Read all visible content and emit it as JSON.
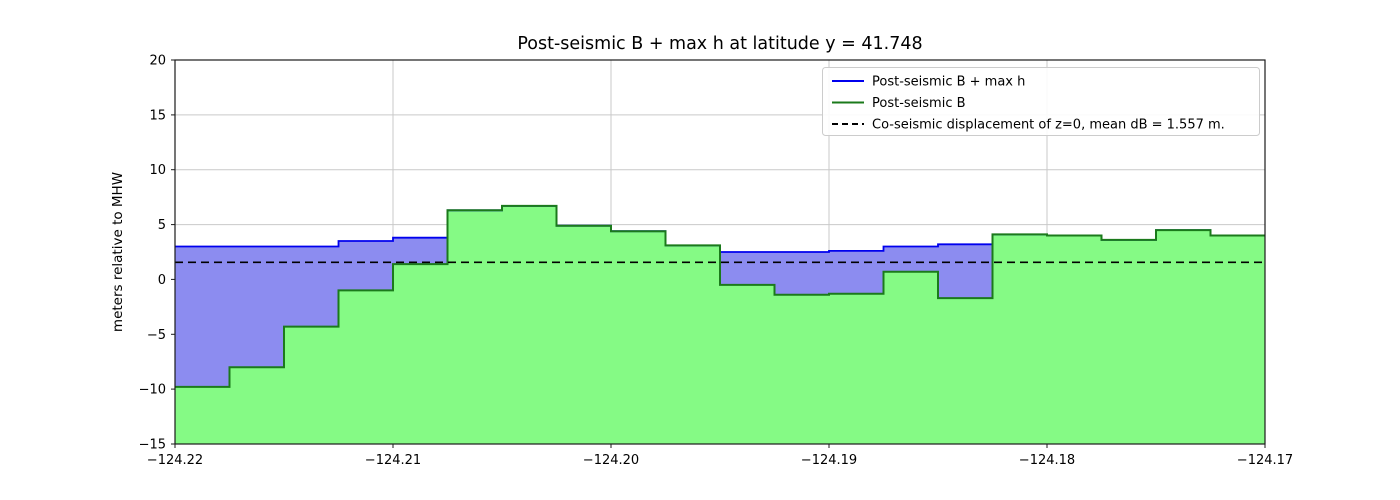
{
  "chart_data": {
    "type": "area",
    "subtype": "step-filled",
    "title": "Post-seismic B + max h at latitude y = 41.748",
    "xlabel": "",
    "ylabel": "meters relative to MHW",
    "xlim": [
      -124.22,
      -124.17
    ],
    "ylim": [
      -15,
      20
    ],
    "grid": true,
    "legend_position": "upper right",
    "xticks": [
      -124.22,
      -124.21,
      -124.2,
      -124.19,
      -124.18,
      -124.17
    ],
    "xtick_labels": [
      "−124.22",
      "−124.21",
      "−124.20",
      "−124.19",
      "−124.18",
      "−124.17"
    ],
    "yticks": [
      20,
      15,
      10,
      5,
      0,
      -5,
      -10,
      -15
    ],
    "ytick_labels": [
      "20",
      "15",
      "10",
      "5",
      "0",
      "−5",
      "−10",
      "−15"
    ],
    "bin_edges": [
      -124.22,
      -124.2175,
      -124.215,
      -124.2125,
      -124.21,
      -124.2075,
      -124.205,
      -124.2025,
      -124.2,
      -124.1975,
      -124.195,
      -124.1925,
      -124.19,
      -124.1875,
      -124.185,
      -124.1825,
      -124.18,
      -124.1775,
      -124.175,
      -124.1725,
      -124.17
    ],
    "series": [
      {
        "name": "Post-seismic B + max h",
        "line_color": "#0000ee",
        "fill_color": "#8c8cf0",
        "values": [
          3.0,
          3.0,
          3.0,
          3.5,
          3.8,
          6.3,
          6.7,
          4.9,
          4.4,
          3.1,
          2.5,
          2.5,
          2.6,
          3.0,
          3.2,
          4.1,
          4.0,
          3.6,
          4.5,
          4.0
        ]
      },
      {
        "name": "Post-seismic B",
        "line_color": "#1b7a1b",
        "fill_color": "#85fa85",
        "values": [
          -9.8,
          -8.0,
          -4.3,
          -1.0,
          1.4,
          6.3,
          6.7,
          4.9,
          4.4,
          3.1,
          -0.5,
          -1.4,
          -1.3,
          0.7,
          -1.7,
          4.1,
          4.0,
          3.6,
          4.5,
          4.0
        ]
      }
    ],
    "reference_line": {
      "label": "Co-seismic displacement of z=0, mean dB = 1.557 m.",
      "y": 1.557,
      "style": "dashed",
      "color": "#000000"
    },
    "legend_entries": [
      {
        "label": "Post-seismic B + max h",
        "color": "#0000ee",
        "dash": "none"
      },
      {
        "label": "Post-seismic B",
        "color": "#1b7a1b",
        "dash": "none"
      },
      {
        "label": "Co-seismic displacement of z=0, mean dB = 1.557 m.",
        "color": "#000000",
        "dash": "dashed"
      }
    ]
  }
}
